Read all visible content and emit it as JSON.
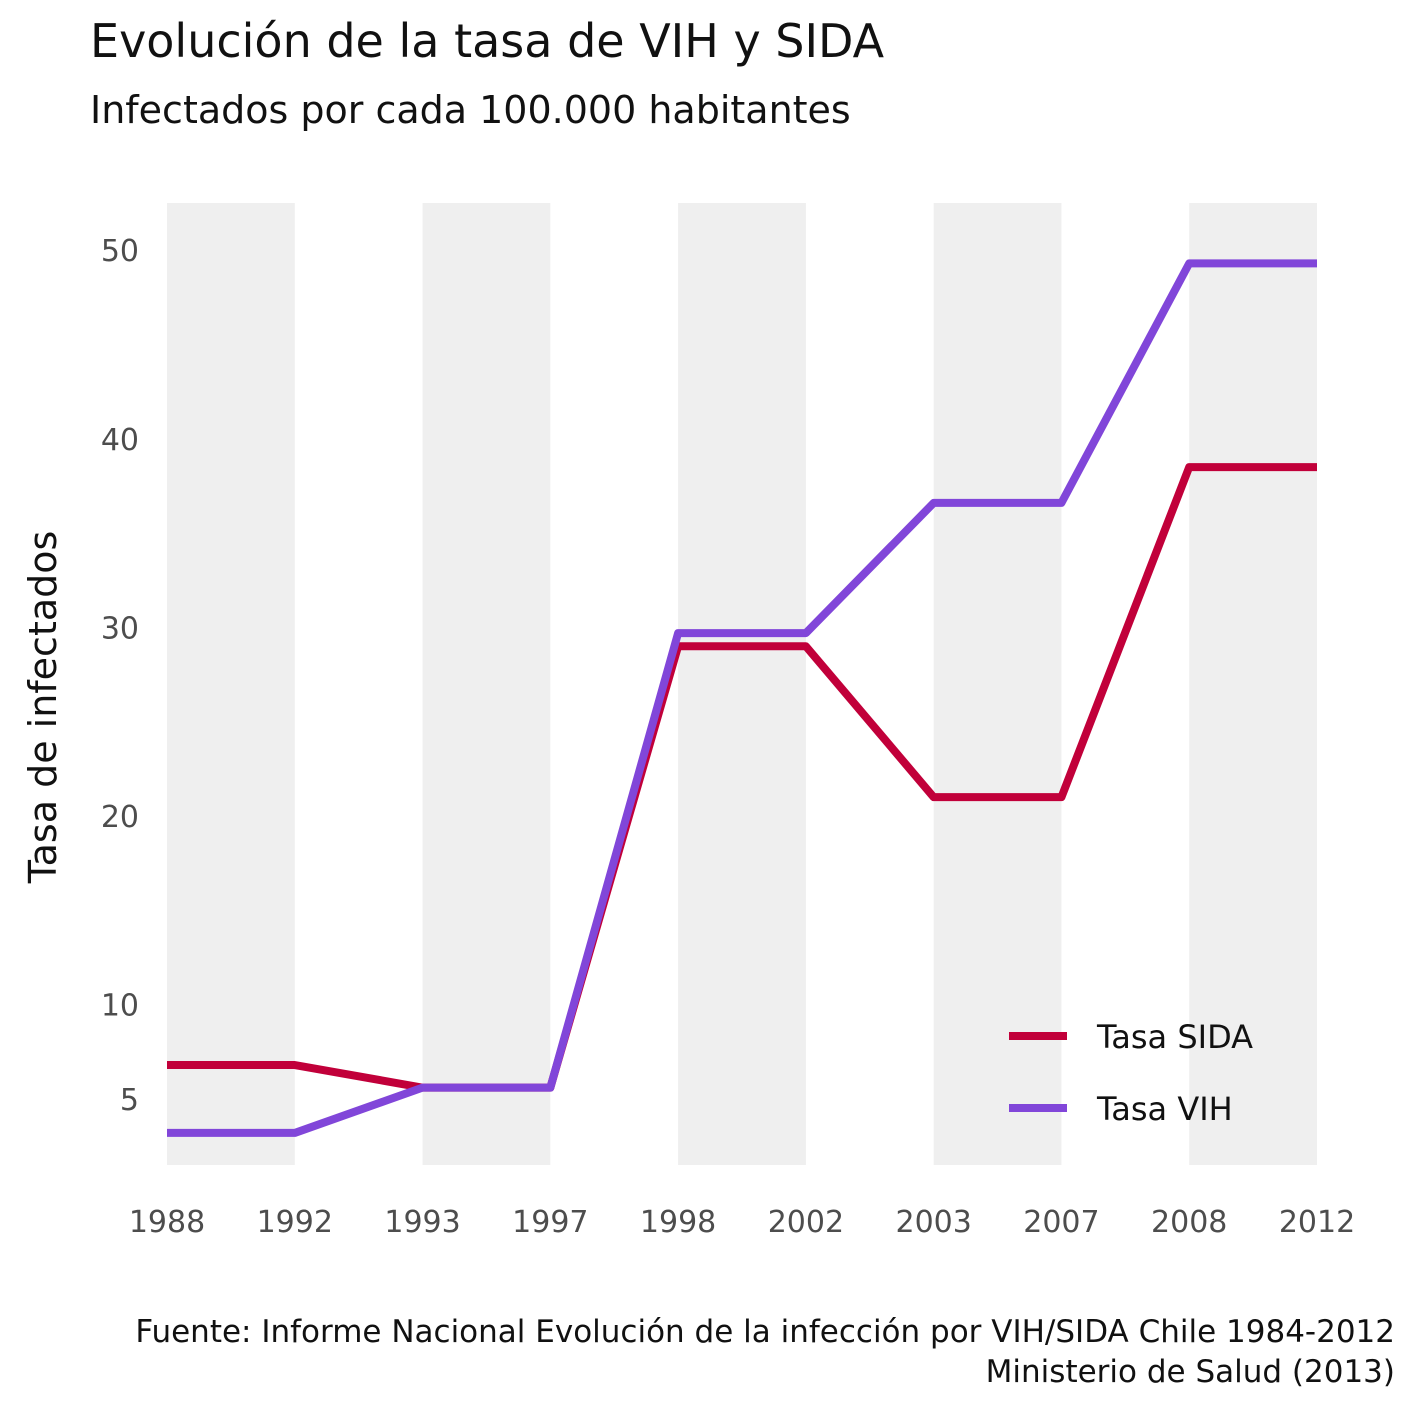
{
  "title": "Evolución de la tasa de VIH y SIDA",
  "subtitle": "Infectados por cada 100.000 habitantes",
  "caption": {
    "line1": "Fuente: Informe Nacional Evolución de la infección por VIH/SIDA Chile 1984-2012",
    "line2": "Ministerio de Salud (2013)"
  },
  "chart_data": {
    "type": "line",
    "title": "Evolución de la tasa de VIH y SIDA",
    "subtitle": "Infectados por cada 100.000 habitantes",
    "xlabel": "",
    "ylabel": "Tasa de infectados",
    "x_ticks": [
      "1988",
      "1992",
      "1993",
      "1997",
      "1998",
      "2002",
      "2003",
      "2007",
      "2008",
      "2012"
    ],
    "y_ticks": [
      5,
      10,
      20,
      30,
      40,
      50
    ],
    "ylim": [
      1.5,
      52.5
    ],
    "shaded_bands": [
      [
        "1988",
        "1992"
      ],
      [
        "1993",
        "1997"
      ],
      [
        "1998",
        "2002"
      ],
      [
        "2003",
        "2007"
      ],
      [
        "2008",
        "2012"
      ]
    ],
    "band_color": "#efefef",
    "legend_position": "bottom-right",
    "grid": false,
    "series": [
      {
        "name": "Tasa SIDA",
        "color": "#c1003a",
        "values": [
          6.8,
          6.8,
          5.6,
          5.6,
          29.0,
          29.0,
          21.0,
          21.0,
          38.5,
          38.5
        ]
      },
      {
        "name": "Tasa VIH",
        "color": "#8146d9",
        "values": [
          3.2,
          3.2,
          5.6,
          5.6,
          29.7,
          29.7,
          36.6,
          36.6,
          49.3,
          49.3
        ]
      }
    ]
  }
}
